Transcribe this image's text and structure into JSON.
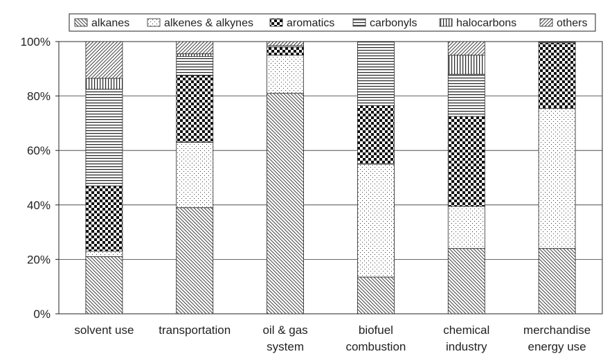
{
  "chart_data": {
    "type": "bar",
    "stacked": true,
    "percent": true,
    "title": "",
    "xlabel": "",
    "ylabel": "",
    "ylim": [
      0,
      100
    ],
    "yticks": [
      "0%",
      "20%",
      "40%",
      "60%",
      "80%",
      "100%"
    ],
    "grid": true,
    "legend_position": "top",
    "categories": [
      [
        "solvent use"
      ],
      [
        "transportation"
      ],
      [
        "oil & gas",
        "system"
      ],
      [
        "biofuel",
        "combustion"
      ],
      [
        "chemical",
        "industry"
      ],
      [
        "merchandise",
        "energy use"
      ]
    ],
    "series": [
      {
        "name": "alkanes",
        "pattern": "diag-back",
        "values": [
          21,
          39,
          81,
          13.5,
          24,
          24
        ]
      },
      {
        "name": "alkenes & alkynes",
        "pattern": "dots",
        "values": [
          2,
          24,
          14,
          41.5,
          15.5,
          51.5
        ]
      },
      {
        "name": "aromatics",
        "pattern": "checker",
        "values": [
          24,
          24.5,
          3,
          21.5,
          33,
          24
        ]
      },
      {
        "name": "carbonyls",
        "pattern": "hlines",
        "values": [
          35.5,
          7,
          0.5,
          23.5,
          15.5,
          0.5
        ]
      },
      {
        "name": "halocarbons",
        "pattern": "vlines",
        "values": [
          4,
          1,
          0,
          0,
          7,
          0
        ]
      },
      {
        "name": "others",
        "pattern": "diag-fwd",
        "values": [
          13.5,
          4.5,
          1.5,
          0,
          5,
          0
        ]
      }
    ]
  }
}
